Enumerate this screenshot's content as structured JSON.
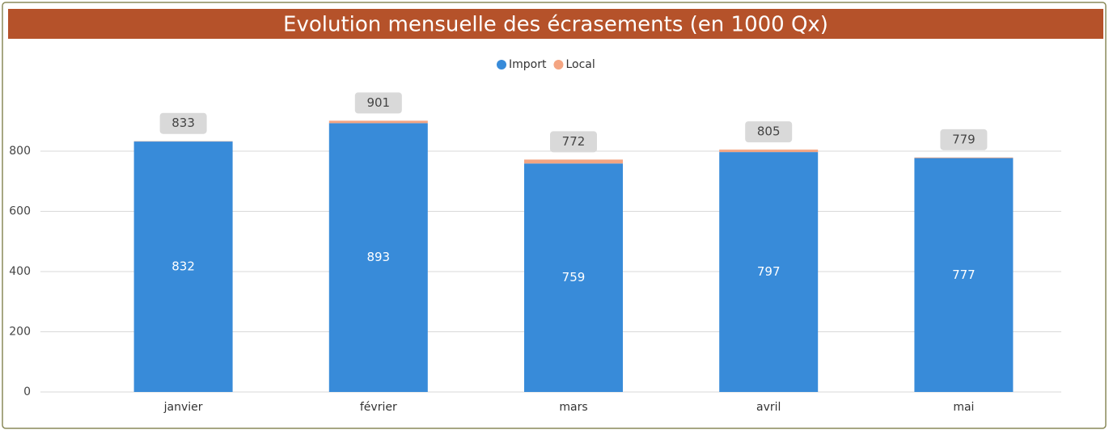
{
  "chart_data": {
    "type": "stacked_bar",
    "title": "Evolution mensuelle des écrasements (en 1000 Qx)",
    "categories": [
      "janvier",
      "février",
      "mars",
      "avril",
      "mai"
    ],
    "series": [
      {
        "name": "Import",
        "color": "#388bd9",
        "values": [
          832,
          893,
          759,
          797,
          777
        ]
      },
      {
        "name": "Local",
        "color": "#f4a582",
        "values": [
          1,
          8,
          13,
          8,
          2
        ]
      }
    ],
    "totals": [
      833,
      901,
      772,
      805,
      779
    ],
    "ylim": [
      0,
      1000
    ],
    "yticks": [
      0,
      200,
      400,
      600,
      800
    ],
    "grid": true,
    "legend": "top"
  }
}
